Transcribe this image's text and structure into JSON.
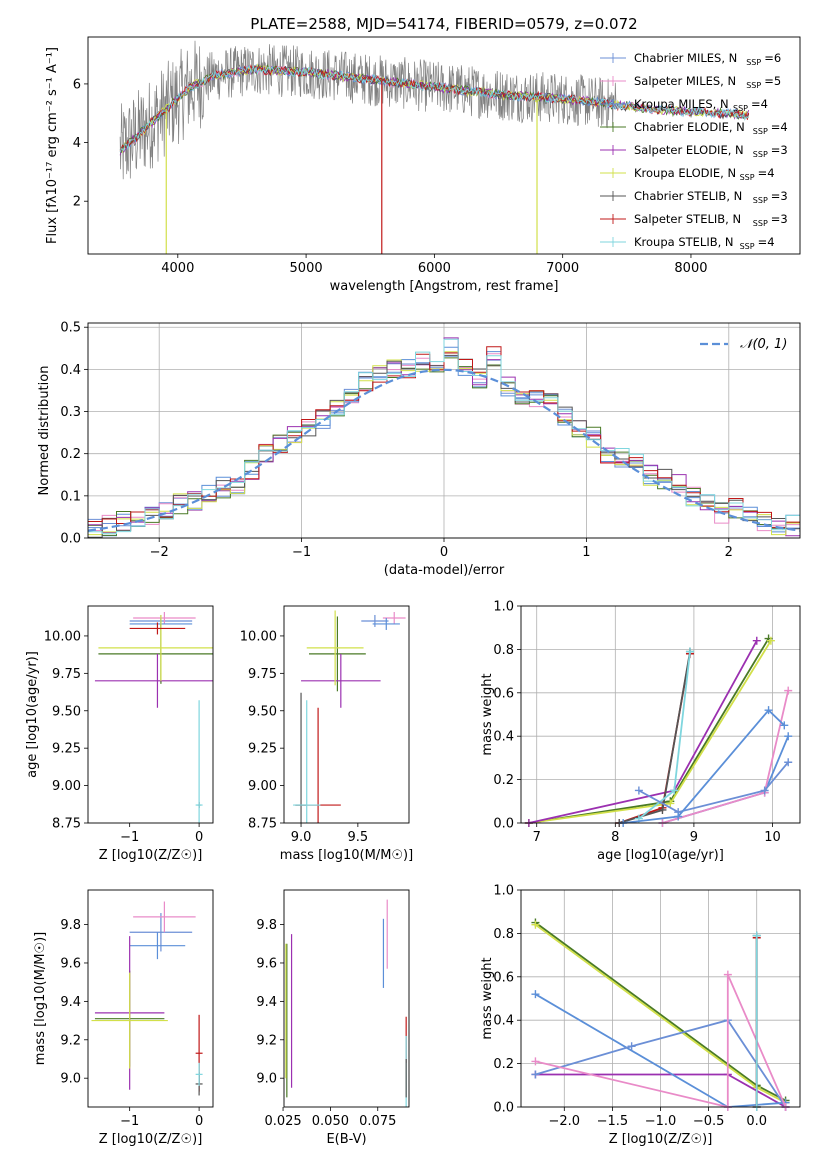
{
  "figure": {
    "title": "PLATE=2588, MJD=54174, FIBERID=0579, z=0.072"
  },
  "series_styles": [
    {
      "name": "Chabrier MILES",
      "nssp": "6",
      "color": "#6b8fd6"
    },
    {
      "name": "Salpeter MILES",
      "nssp": "5",
      "color": "#e98bc8"
    },
    {
      "name": "Kroupa MILES",
      "nssp": "4",
      "color": "#5b8fd8"
    },
    {
      "name": "Chabrier ELODIE",
      "nssp": "4",
      "color": "#4a7a26"
    },
    {
      "name": "Salpeter ELODIE",
      "nssp": "3",
      "color": "#9b30b0"
    },
    {
      "name": "Kroupa ELODIE",
      "nssp": "4",
      "color": "#d2e04a"
    },
    {
      "name": "Chabrier STELIB",
      "nssp": "3",
      "color": "#555555"
    },
    {
      "name": "Salpeter STELIB",
      "nssp": "3",
      "color": "#c01818"
    },
    {
      "name": "Kroupa STELIB",
      "nssp": "4",
      "color": "#7fd6de"
    }
  ],
  "chart_data": [
    {
      "id": "spectrum",
      "type": "line",
      "title": "PLATE=2588, MJD=54174, FIBERID=0579, z=0.072",
      "xlabel": "wavelength [Angstrom, rest frame]",
      "ylabel": "Flux [fλ10⁻¹⁷ erg cm⁻² s⁻¹ A⁻¹]",
      "xlim": [
        3300,
        8850
      ],
      "ylim": [
        0.2,
        7.6
      ],
      "xticks": [
        4000,
        5000,
        6000,
        7000,
        8000
      ],
      "yticks": [
        2,
        4,
        6
      ],
      "grid": false,
      "legend": "top-right",
      "data_envelope": {
        "x": [
          3550,
          3650,
          3800,
          3950,
          4100,
          4300,
          4600,
          5000,
          5400,
          5800,
          6200,
          6600,
          7000,
          7400,
          7800,
          8200,
          8600
        ],
        "y": [
          3.7,
          4.1,
          4.7,
          5.3,
          5.9,
          6.3,
          6.5,
          6.4,
          6.2,
          6.0,
          5.8,
          5.6,
          5.5,
          5.3,
          5.1,
          5.0,
          4.9
        ]
      },
      "model_dips": [
        {
          "x": 3910,
          "to": 0.2,
          "series": "Kroupa ELODIE"
        },
        {
          "x": 5590,
          "to": 0.2,
          "series": "Salpeter STELIB"
        },
        {
          "x": 6800,
          "to": 0.2,
          "series": "Kroupa ELODIE"
        }
      ]
    },
    {
      "id": "residuals",
      "type": "step",
      "xlabel": "(data-model)/error",
      "ylabel": "Normed distribution",
      "xlim": [
        -2.5,
        2.5
      ],
      "ylim": [
        0,
        0.51
      ],
      "xticks": [
        -2,
        -1,
        0,
        1,
        2
      ],
      "yticks": [
        0.0,
        0.1,
        0.2,
        0.3,
        0.4,
        0.5
      ],
      "grid": true,
      "legend": "top-right",
      "reference": {
        "name": "N(0,1)",
        "mean": 0,
        "sigma": 1
      },
      "bins": [
        -2.5,
        -2.4,
        -2.3,
        -2.2,
        -2.1,
        -2.0,
        -1.9,
        -1.8,
        -1.7,
        -1.6,
        -1.5,
        -1.4,
        -1.3,
        -1.2,
        -1.1,
        -1.0,
        -0.9,
        -0.8,
        -0.7,
        -0.6,
        -0.5,
        -0.4,
        -0.3,
        -0.2,
        -0.1,
        0.0,
        0.1,
        0.2,
        0.3,
        0.4,
        0.5,
        0.6,
        0.7,
        0.8,
        0.9,
        1.0,
        1.1,
        1.2,
        1.3,
        1.4,
        1.5,
        1.6,
        1.7,
        1.8,
        1.9,
        2.0,
        2.1,
        2.2,
        2.3,
        2.4,
        2.5
      ],
      "base_counts": [
        0.02,
        0.03,
        0.04,
        0.04,
        0.05,
        0.06,
        0.08,
        0.09,
        0.1,
        0.12,
        0.13,
        0.16,
        0.2,
        0.22,
        0.24,
        0.26,
        0.28,
        0.31,
        0.34,
        0.37,
        0.39,
        0.4,
        0.4,
        0.42,
        0.41,
        0.45,
        0.4,
        0.38,
        0.43,
        0.36,
        0.34,
        0.33,
        0.32,
        0.29,
        0.26,
        0.24,
        0.2,
        0.19,
        0.18,
        0.15,
        0.14,
        0.13,
        0.1,
        0.09,
        0.06,
        0.07,
        0.05,
        0.04,
        0.03,
        0.03
      ]
    },
    {
      "id": "z-vs-age",
      "type": "errorbar",
      "xlabel": "Z [log10(Z/Z☉)]",
      "ylabel": "age  [log10(age/yr)]",
      "xlim": [
        -1.6,
        0.2
      ],
      "ylim": [
        8.75,
        10.2
      ],
      "xticks": [
        -1,
        0
      ],
      "yticks": [
        8.75,
        9.0,
        9.25,
        9.5,
        9.75,
        10.0
      ],
      "points": [
        {
          "series": "Chabrier MILES",
          "x": -0.55,
          "xerr": 0.45,
          "y": 10.1,
          "yerr": 0.04
        },
        {
          "series": "Salpeter MILES",
          "x": -0.5,
          "xerr": 0.45,
          "y": 10.12,
          "yerr": 0.04
        },
        {
          "series": "Kroupa MILES",
          "x": -0.55,
          "xerr": 0.45,
          "y": 10.08,
          "yerr": 0.04
        },
        {
          "series": "Chabrier ELODIE",
          "x": -0.55,
          "xerr": 0.9,
          "y": 9.88,
          "yerr": 0.2
        },
        {
          "series": "Salpeter ELODIE",
          "x": -0.6,
          "xerr": 0.9,
          "y": 9.7,
          "yerr": 0.18
        },
        {
          "series": "Kroupa ELODIE",
          "x": -0.55,
          "xerr": 0.9,
          "y": 9.92,
          "yerr": 0.22
        },
        {
          "series": "Salpeter STELIB",
          "x": -0.6,
          "xerr": 0.4,
          "y": 10.05,
          "yerr": 0.04
        },
        {
          "series": "Chabrier STELIB",
          "x": 0.0,
          "xerr": 0.02,
          "y": 8.87,
          "yerr": 0.02
        },
        {
          "series": "Kroupa STELIB",
          "x": 0.0,
          "xerr": 0.05,
          "y": 8.87,
          "yerr": 0.7
        }
      ]
    },
    {
      "id": "mass-vs-age",
      "type": "errorbar",
      "xlabel": "mass [log10(M/M☉)]",
      "ylabel": "",
      "xlim": [
        8.85,
        9.95
      ],
      "ylim": [
        8.75,
        10.2
      ],
      "xticks": [
        9.0,
        9.5
      ],
      "yticks": [
        8.75,
        9.0,
        9.25,
        9.5,
        9.75,
        10.0
      ],
      "points": [
        {
          "series": "Chabrier MILES",
          "x": 9.65,
          "xerr": 0.12,
          "y": 10.1,
          "yerr": 0.04
        },
        {
          "series": "Salpeter MILES",
          "x": 9.82,
          "xerr": 0.1,
          "y": 10.12,
          "yerr": 0.04
        },
        {
          "series": "Kroupa MILES",
          "x": 9.75,
          "xerr": 0.12,
          "y": 10.08,
          "yerr": 0.04
        },
        {
          "series": "Chabrier ELODIE",
          "x": 9.32,
          "xerr": 0.25,
          "y": 9.88,
          "yerr": 0.25
        },
        {
          "series": "Salpeter ELODIE",
          "x": 9.35,
          "xerr": 0.35,
          "y": 9.7,
          "yerr": 0.18
        },
        {
          "series": "Kroupa ELODIE",
          "x": 9.3,
          "xerr": 0.25,
          "y": 9.92,
          "yerr": 0.25
        },
        {
          "series": "Salpeter STELIB",
          "x": 9.15,
          "xerr": 0.2,
          "y": 8.87,
          "yerr": 0.65
        },
        {
          "series": "Chabrier STELIB",
          "x": 9.0,
          "xerr": 0.05,
          "y": 8.87,
          "yerr": 0.75
        },
        {
          "series": "Kroupa STELIB",
          "x": 9.05,
          "xerr": 0.12,
          "y": 8.87,
          "yerr": 0.7
        }
      ]
    },
    {
      "id": "age-weights",
      "type": "line",
      "xlabel": "age  [log10(age/yr)]",
      "ylabel": "mass weight",
      "xlim": [
        6.8,
        10.35
      ],
      "ylim": [
        0,
        1
      ],
      "xticks": [
        7,
        8,
        9,
        10
      ],
      "yticks": [
        0.0,
        0.2,
        0.4,
        0.6,
        0.8,
        1.0
      ],
      "grid": true,
      "series": [
        {
          "series": "Chabrier ELODIE",
          "x": [
            6.9,
            8.7,
            9.95
          ],
          "y": [
            0.0,
            0.1,
            0.85
          ]
        },
        {
          "series": "Kroupa ELODIE",
          "x": [
            6.9,
            8.7,
            9.98
          ],
          "y": [
            0.0,
            0.09,
            0.84
          ]
        },
        {
          "series": "Salpeter ELODIE",
          "x": [
            6.9,
            8.75,
            9.8
          ],
          "y": [
            0.0,
            0.15,
            0.84
          ]
        },
        {
          "series": "Salpeter STELIB",
          "x": [
            8.05,
            8.6,
            8.95
          ],
          "y": [
            0.0,
            0.07,
            0.78
          ]
        },
        {
          "series": "Chabrier STELIB",
          "x": [
            8.05,
            8.6,
            8.95
          ],
          "y": [
            0.0,
            0.06,
            0.79
          ]
        },
        {
          "series": "Kroupa STELIB",
          "x": [
            8.3,
            8.75,
            8.95
          ],
          "y": [
            0.02,
            0.15,
            0.79
          ]
        },
        {
          "series": "Kroupa MILES",
          "x": [
            8.6,
            9.9,
            10.2
          ],
          "y": [
            0.0,
            0.14,
            0.4
          ]
        },
        {
          "series": "Salpeter MILES",
          "x": [
            8.6,
            9.9,
            10.2
          ],
          "y": [
            0.0,
            0.14,
            0.61
          ]
        },
        {
          "series": "Chabrier MILES",
          "x": [
            8.3,
            8.8,
            9.9,
            10.2
          ],
          "y": [
            0.15,
            0.05,
            0.15,
            0.28
          ]
        },
        {
          "series": "Kroupa MILES",
          "x": [
            8.1,
            8.8,
            9.95,
            10.15
          ],
          "y": [
            0.0,
            0.03,
            0.52,
            0.45
          ]
        }
      ]
    },
    {
      "id": "z-vs-mass",
      "type": "errorbar",
      "xlabel": "Z [log10(Z/Z☉)]",
      "ylabel": "mass [log10(M/M☉)]",
      "xlim": [
        -1.6,
        0.2
      ],
      "ylim": [
        8.85,
        9.98
      ],
      "xticks": [
        -1,
        0
      ],
      "yticks": [
        9.0,
        9.2,
        9.4,
        9.6,
        9.8
      ],
      "points": [
        {
          "series": "Chabrier MILES",
          "x": -0.55,
          "xerr": 0.45,
          "y": 9.76,
          "yerr": 0.1
        },
        {
          "series": "Salpeter MILES",
          "x": -0.5,
          "xerr": 0.45,
          "y": 9.84,
          "yerr": 0.08
        },
        {
          "series": "Kroupa MILES",
          "x": -0.6,
          "xerr": 0.4,
          "y": 9.69,
          "yerr": 0.07
        },
        {
          "series": "Chabrier ELODIE",
          "x": -1.0,
          "xerr": 0.5,
          "y": 9.31,
          "yerr": 0.25
        },
        {
          "series": "Salpeter ELODIE",
          "x": -1.0,
          "xerr": 0.5,
          "y": 9.34,
          "yerr": 0.4
        },
        {
          "series": "Kroupa ELODIE",
          "x": -1.0,
          "xerr": 0.55,
          "y": 9.3,
          "yerr": 0.25
        },
        {
          "series": "Salpeter STELIB",
          "x": 0.0,
          "xerr": 0.05,
          "y": 9.13,
          "yerr": 0.2
        },
        {
          "series": "Chabrier STELIB",
          "x": 0.0,
          "xerr": 0.05,
          "y": 8.97,
          "yerr": 0.06
        },
        {
          "series": "Kroupa STELIB",
          "x": 0.0,
          "xerr": 0.05,
          "y": 9.02,
          "yerr": 0.06
        }
      ]
    },
    {
      "id": "ebv-vs-mass",
      "type": "errorbar",
      "xlabel": "E(B-V)",
      "ylabel": "",
      "xlim": [
        0.0255,
        0.0915
      ],
      "ylim": [
        8.85,
        9.98
      ],
      "xticks": [
        0.025,
        0.05,
        0.075
      ],
      "yticks": [
        9.0,
        9.2,
        9.4,
        9.6,
        9.8
      ],
      "points": [
        {
          "series": "Kroupa MILES",
          "x": 0.078,
          "xerr": 0.0,
          "y": 9.65,
          "yerr": 0.18
        },
        {
          "series": "Salpeter MILES",
          "x": 0.08,
          "xerr": 0.0,
          "y": 9.75,
          "yerr": 0.18
        },
        {
          "series": "Chabrier ELODIE",
          "x": 0.027,
          "xerr": 0.0,
          "y": 9.3,
          "yerr": 0.4
        },
        {
          "series": "Kroupa ELODIE",
          "x": 0.0265,
          "xerr": 0.0,
          "y": 9.35,
          "yerr": 0.35
        },
        {
          "series": "Salpeter ELODIE",
          "x": 0.0295,
          "xerr": 0.0,
          "y": 9.35,
          "yerr": 0.4
        },
        {
          "series": "Salpeter STELIB",
          "x": 0.09,
          "xerr": 0.0,
          "y": 9.2,
          "yerr": 0.12
        },
        {
          "series": "Kroupa STELIB",
          "x": 0.09,
          "xerr": 0.0,
          "y": 9.02,
          "yerr": 0.2
        },
        {
          "series": "Chabrier STELIB",
          "x": 0.09,
          "xerr": 0.0,
          "y": 9.0,
          "yerr": 0.1
        }
      ]
    },
    {
      "id": "z-weights",
      "type": "line",
      "xlabel": "Z [log10(Z/Z☉)]",
      "ylabel": "mass weight",
      "xlim": [
        -2.45,
        0.45
      ],
      "ylim": [
        0,
        1
      ],
      "xticks": [
        -2.0,
        -1.5,
        -1.0,
        -0.5,
        0.0
      ],
      "yticks": [
        0.0,
        0.2,
        0.4,
        0.6,
        0.8,
        1.0
      ],
      "grid": true,
      "series": [
        {
          "series": "Chabrier ELODIE",
          "x": [
            -2.3,
            0.0,
            0.3
          ],
          "y": [
            0.85,
            0.1,
            0.03
          ]
        },
        {
          "series": "Kroupa ELODIE",
          "x": [
            -2.3,
            0.0,
            0.3
          ],
          "y": [
            0.84,
            0.09,
            0.02
          ]
        },
        {
          "series": "Salpeter ELODIE",
          "x": [
            -2.3,
            -0.3,
            0.3
          ],
          "y": [
            0.15,
            0.15,
            0.0
          ]
        },
        {
          "series": "Kroupa MILES",
          "x": [
            -2.3,
            -0.3,
            0.3
          ],
          "y": [
            0.52,
            0.0,
            0.02
          ]
        },
        {
          "series": "Chabrier MILES",
          "x": [
            -2.3,
            -1.3,
            -0.3,
            0.3
          ],
          "y": [
            0.15,
            0.28,
            0.4,
            0.0
          ]
        },
        {
          "series": "Salpeter MILES",
          "x": [
            -2.3,
            -0.3,
            -0.3,
            0.3
          ],
          "y": [
            0.21,
            0.0,
            0.61,
            0.0
          ]
        },
        {
          "series": "Chabrier STELIB",
          "x": [
            0.0,
            0.0
          ],
          "y": [
            0.0,
            0.79
          ]
        },
        {
          "series": "Salpeter STELIB",
          "x": [
            0.0,
            0.0
          ],
          "y": [
            0.0,
            0.78
          ]
        },
        {
          "series": "Kroupa STELIB",
          "x": [
            0.0,
            0.0
          ],
          "y": [
            0.0,
            0.79
          ]
        }
      ]
    }
  ]
}
